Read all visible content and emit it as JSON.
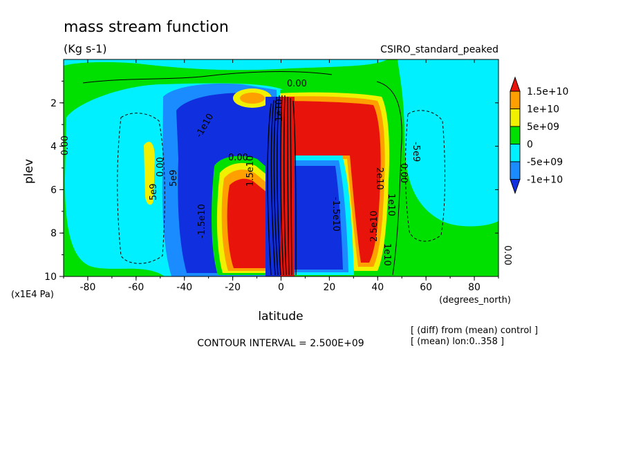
{
  "chart_data": {
    "type": "heatmap",
    "title": "mass stream function",
    "units": "(Kg s-1)",
    "dataset": "CSIRO_standard_peaked",
    "xlabel": "latitude",
    "x_units": "(degrees_north)",
    "ylabel": "plev",
    "y_units": "(x1E4 Pa)",
    "xlim": [
      -90,
      90
    ],
    "ylim": [
      10,
      0
    ],
    "x_ticks": [
      "-80",
      "-60",
      "-40",
      "-20",
      "0",
      "20",
      "40",
      "60",
      "80"
    ],
    "y_ticks": [
      "2",
      "4",
      "6",
      "8",
      "10"
    ],
    "contour_interval_text": "CONTOUR INTERVAL = 2.500E+09",
    "notes": [
      "[ (diff) from (mean) control ]",
      "[ (mean) lon:0..358 ]"
    ],
    "colorbar": {
      "labels": [
        "1.5e+10",
        "1e+10",
        "5e+09",
        "0",
        "-5e+09",
        "-1e+10"
      ],
      "colors": [
        "#e8140c",
        "#ff9f00",
        "#f0f000",
        "#00e000",
        "#00f0ff",
        "#1a8cff",
        "#1030e0"
      ]
    },
    "contour_labels": [
      "0.00",
      "0.00",
      "0.00",
      "5e9",
      "5e9",
      "-1e10",
      "1e10",
      "-1.5e10",
      "2.5e10",
      "2e10",
      "-1.5e10",
      "1e10",
      "0.00",
      "0.00",
      "-5e9",
      "0.00",
      "1e10",
      "1.5e10"
    ],
    "cells": [
      {
        "lat": [
          -10,
          0
        ],
        "p": [
          1.5,
          10
        ],
        "level": "-1e+10"
      },
      {
        "lat": [
          0,
          10
        ],
        "p": [
          1.5,
          10
        ],
        "level": "1.5e+10"
      },
      {
        "lat": [
          -45,
          -10
        ],
        "p": [
          1.5,
          5
        ],
        "level": "-1e+10"
      },
      {
        "lat": [
          -25,
          -10
        ],
        "p": [
          4.5,
          10
        ],
        "level": "1.5e+10"
      },
      {
        "lat": [
          10,
          40
        ],
        "p": [
          1.5,
          5
        ],
        "level": "1.5e+10"
      },
      {
        "lat": [
          10,
          30
        ],
        "p": [
          4.5,
          10
        ],
        "level": "-1e+10"
      },
      {
        "lat": [
          -55,
          -52
        ],
        "p": [
          4,
          7
        ],
        "level": "5e+09"
      },
      {
        "lat": [
          -20,
          -10
        ],
        "p": [
          1.5,
          2
        ],
        "level": "5e+09"
      }
    ]
  }
}
